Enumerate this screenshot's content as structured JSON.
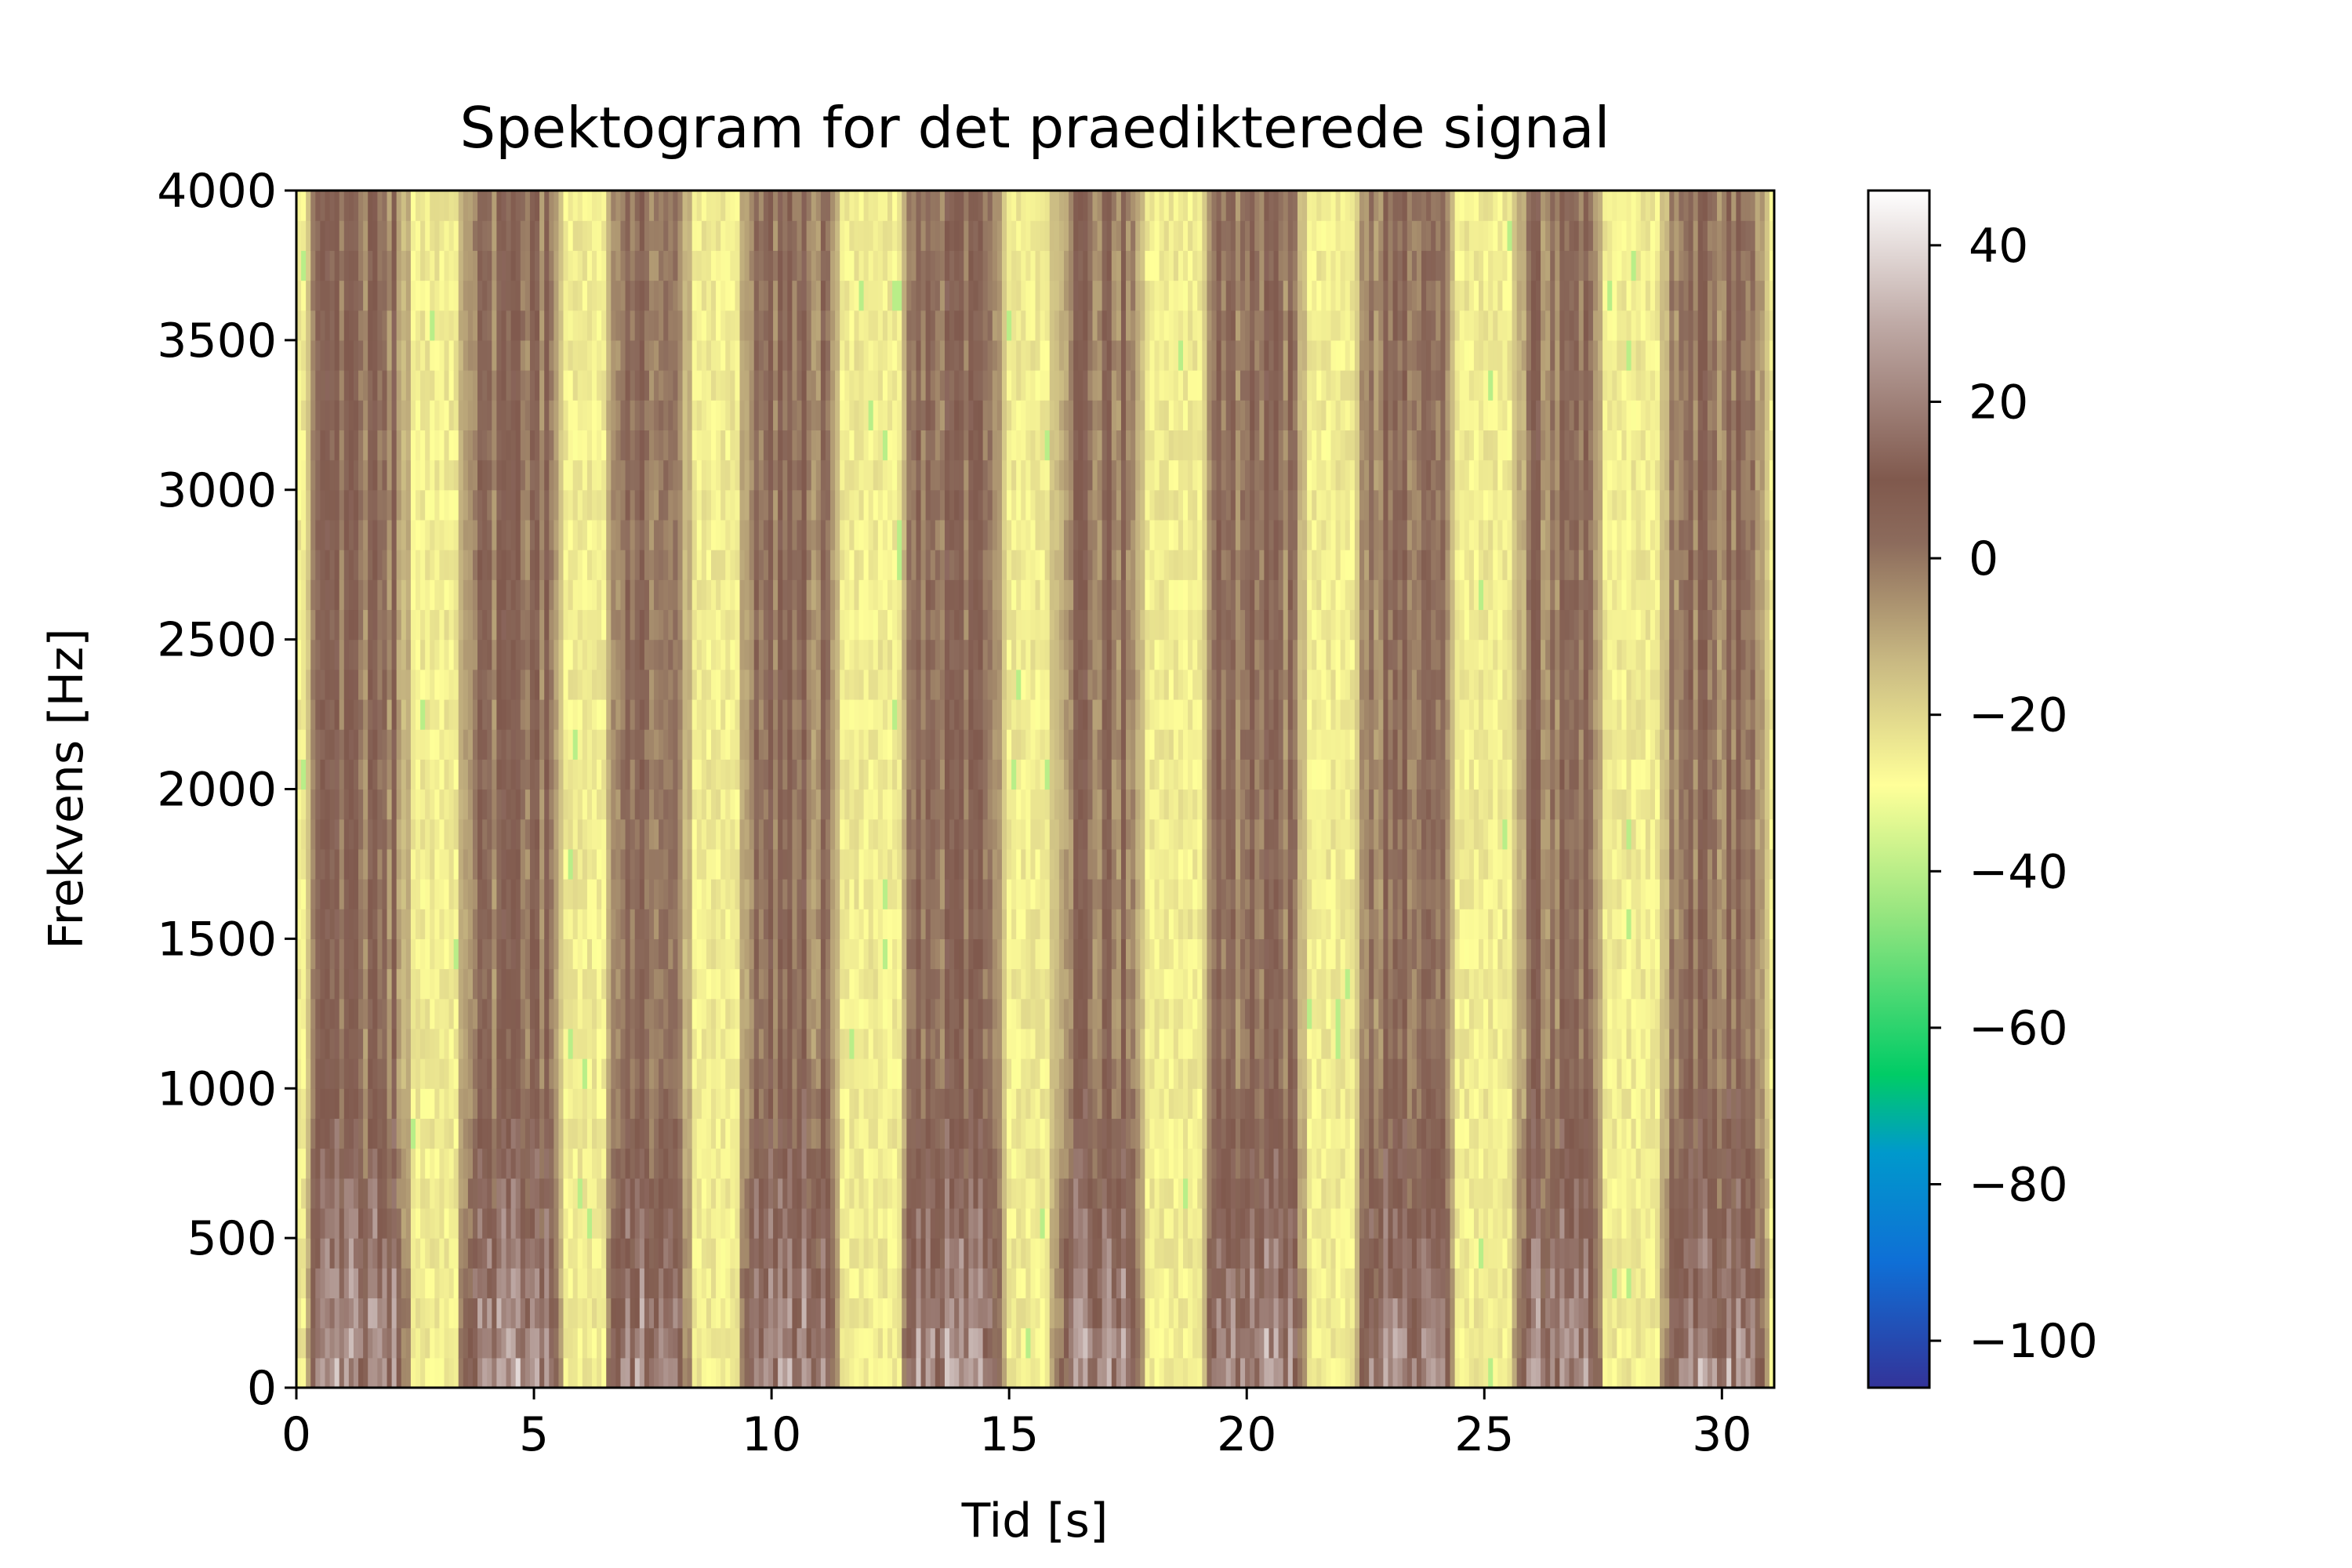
{
  "chart_data": {
    "type": "heatmap",
    "title": "Spektogram for det praedikterede signal",
    "xlabel": "Tid [s]",
    "ylabel": "Frekvens [Hz]",
    "xlim": [
      0,
      31.1
    ],
    "ylim": [
      0,
      4000
    ],
    "x_ticks": [
      0,
      5,
      10,
      15,
      20,
      25,
      30
    ],
    "x_tick_labels": [
      "0",
      "5",
      "10",
      "15",
      "20",
      "25",
      "30"
    ],
    "y_ticks": [
      0,
      500,
      1000,
      1500,
      2000,
      2500,
      3000,
      3500,
      4000
    ],
    "y_tick_labels": [
      "0",
      "500",
      "1000",
      "1500",
      "2000",
      "2500",
      "3000",
      "3500",
      "4000"
    ],
    "colorbar": {
      "vmin": -106,
      "vmax": 47,
      "ticks": [
        40,
        20,
        0,
        -20,
        -40,
        -60,
        -80,
        -100
      ],
      "tick_labels": [
        "40",
        "20",
        "0",
        "−20",
        "−40",
        "−60",
        "−80",
        "−100"
      ],
      "colormap_stops": [
        {
          "value": -106,
          "color": "#333399"
        },
        {
          "value": -90,
          "color": "#0f6fd6"
        },
        {
          "value": -76,
          "color": "#0099cc"
        },
        {
          "value": -66,
          "color": "#00cc66"
        },
        {
          "value": -45,
          "color": "#99e680"
        },
        {
          "value": -29,
          "color": "#ffff99"
        },
        {
          "value": -13,
          "color": "#c8b882"
        },
        {
          "value": 2,
          "color": "#8c6b5c"
        },
        {
          "value": 10,
          "color": "#80594d"
        },
        {
          "value": 30,
          "color": "#bfaaa6"
        },
        {
          "value": 47,
          "color": "#ffffff"
        }
      ]
    },
    "grid": false,
    "speech_segments_s": [
      [
        0.2,
        2.4
      ],
      [
        3.4,
        5.6
      ],
      [
        6.5,
        8.3
      ],
      [
        9.3,
        11.4
      ],
      [
        12.7,
        14.9
      ],
      [
        15.9,
        17.9
      ],
      [
        19.1,
        21.3
      ],
      [
        22.3,
        24.4
      ],
      [
        25.6,
        27.5
      ],
      [
        28.7,
        31.0
      ]
    ],
    "level_db": {
      "silence": -25,
      "speech_high_freq": 2,
      "speech_low_freq_peak": 32
    }
  }
}
